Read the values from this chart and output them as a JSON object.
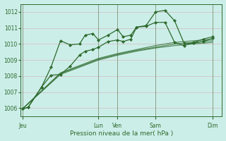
{
  "title": "",
  "xlabel": "Pression niveau de la mer( hPa )",
  "bg_color": "#cceee8",
  "grid_color": "#ddb8c0",
  "line_color": "#2d6a2d",
  "ylim": [
    1005.5,
    1012.5
  ],
  "yticks": [
    1006,
    1007,
    1008,
    1009,
    1010,
    1011,
    1012
  ],
  "xtick_labels": [
    "Jeu",
    "",
    "Lun",
    "Ven",
    "",
    "Sam",
    "",
    "Dim"
  ],
  "xtick_positions": [
    0,
    2,
    4,
    5,
    6,
    7,
    9,
    10
  ],
  "xlim": [
    -0.1,
    10.5
  ],
  "smooth1_x": [
    0,
    2,
    4,
    5,
    6,
    7,
    8,
    9,
    10
  ],
  "smooth1_y": [
    1005.95,
    1008.1,
    1009.0,
    1009.3,
    1009.55,
    1009.75,
    1009.9,
    1010.0,
    1010.1
  ],
  "smooth2_x": [
    0,
    2,
    4,
    5,
    6,
    7,
    8,
    9,
    10
  ],
  "smooth2_y": [
    1005.95,
    1008.15,
    1009.05,
    1009.35,
    1009.6,
    1009.8,
    1010.0,
    1010.1,
    1010.2
  ],
  "smooth3_x": [
    0,
    2,
    4,
    5,
    6,
    7,
    8,
    9,
    10
  ],
  "smooth3_y": [
    1005.95,
    1008.2,
    1009.1,
    1009.4,
    1009.65,
    1009.9,
    1010.1,
    1010.2,
    1010.3
  ],
  "wiggly1_x": [
    0,
    0.3,
    1.0,
    1.5,
    2.0,
    2.5,
    3.0,
    3.3,
    3.7,
    4.0,
    4.5,
    5.0,
    5.3,
    5.7,
    6.0,
    6.5,
    7.0,
    7.5,
    8.0,
    8.5,
    9.0,
    9.5,
    10.0
  ],
  "wiggly1_y": [
    1005.95,
    1006.05,
    1007.3,
    1008.55,
    1010.2,
    1009.95,
    1010.0,
    1010.55,
    1010.65,
    1010.25,
    1010.55,
    1010.9,
    1010.45,
    1010.55,
    1011.05,
    1011.15,
    1012.0,
    1012.1,
    1011.45,
    1010.05,
    1010.05,
    1010.15,
    1010.35
  ],
  "wiggly2_x": [
    0,
    0.3,
    1.0,
    1.5,
    2.0,
    2.5,
    3.0,
    3.3,
    3.7,
    4.0,
    4.5,
    5.0,
    5.3,
    5.7,
    6.0,
    6.5,
    7.0,
    7.5,
    8.0,
    8.5,
    9.0,
    9.5,
    10.0
  ],
  "wiggly2_y": [
    1005.95,
    1006.05,
    1007.3,
    1008.05,
    1008.1,
    1008.6,
    1009.3,
    1009.55,
    1009.65,
    1009.8,
    1010.15,
    1010.25,
    1010.15,
    1010.3,
    1011.05,
    1011.1,
    1011.35,
    1011.35,
    1010.1,
    1009.9,
    1010.1,
    1010.3,
    1010.45
  ]
}
